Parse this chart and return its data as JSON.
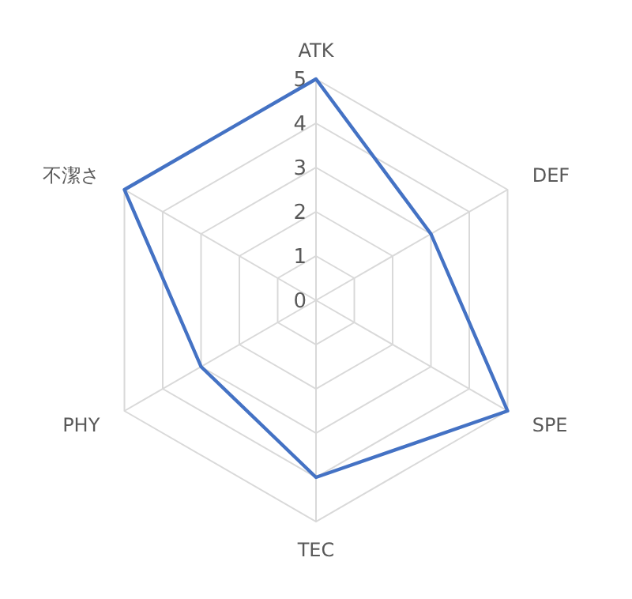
{
  "chart_data": {
    "type": "radar",
    "categories": [
      "ATK",
      "DEF",
      "SPE",
      "TEC",
      "PHY",
      "不潔さ"
    ],
    "series": [
      {
        "color": "#4472c4",
        "values": [
          5,
          3,
          5,
          4,
          3,
          5
        ]
      }
    ],
    "ylim": [
      0,
      5
    ],
    "yticks": [
      0,
      1,
      2,
      3,
      4,
      5
    ],
    "grid": true,
    "marker": "none",
    "line_style": "solid"
  }
}
